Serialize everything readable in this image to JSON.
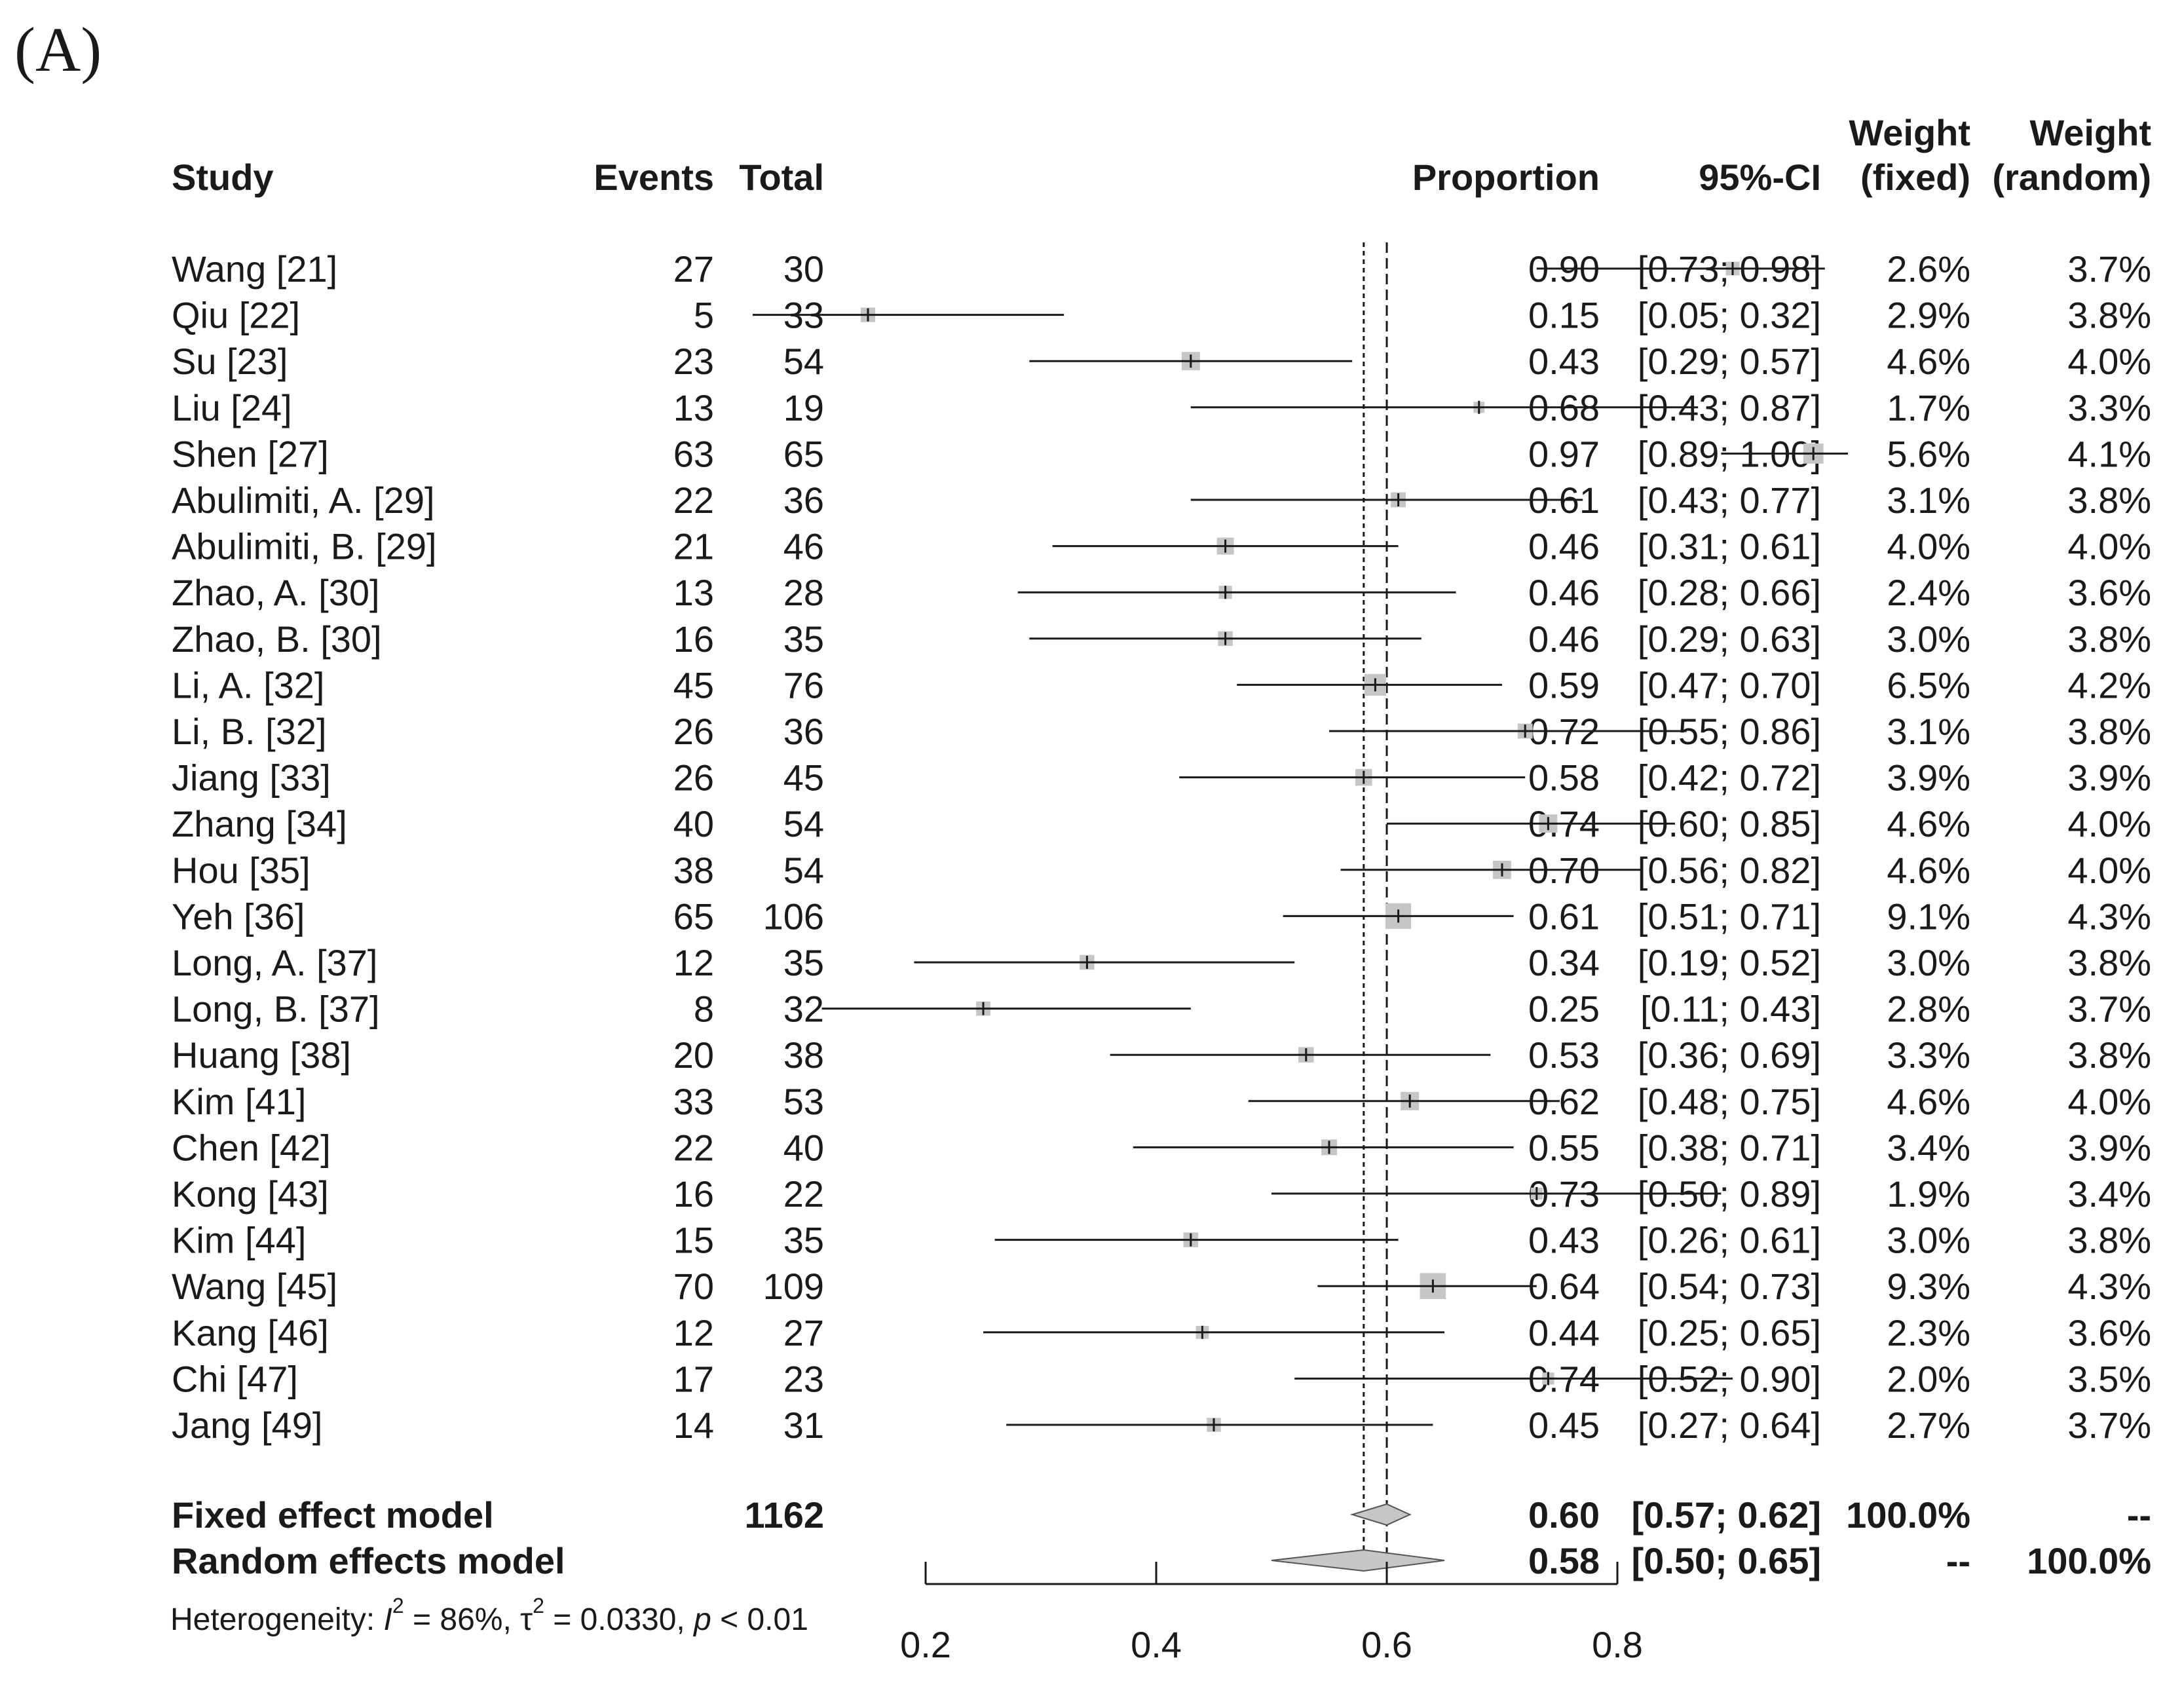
{
  "panel_label": "(A)",
  "headers": {
    "study": "Study",
    "events": "Events",
    "total": "Total",
    "proportion": "Proportion",
    "ci": "95%-CI",
    "weight_fixed_1": "Weight",
    "weight_fixed_2": "(fixed)",
    "weight_random_1": "Weight",
    "weight_random_2": "(random)"
  },
  "heterogeneity": {
    "prefix": "Heterogeneity: ",
    "i_symbol": "I",
    "sup": "2",
    "i_value": " = 86%, ",
    "tau_symbol": "τ",
    "tau_value": " = 0.0330, ",
    "p_symbol": "p",
    "p_value": " < 0.01"
  },
  "chart_data": {
    "type": "forest",
    "x_axis": {
      "ticks": [
        0.2,
        0.4,
        0.6,
        0.8
      ],
      "tick_labels": [
        "0.2",
        "0.4",
        "0.6",
        "0.8"
      ],
      "range": [
        0.2,
        0.8
      ]
    },
    "reference_lines": {
      "fixed": 0.6,
      "random": 0.58
    },
    "studies": [
      {
        "study": "Wang [21]",
        "events": "27",
        "total": "30",
        "proportion": 0.9,
        "ci_low": 0.73,
        "ci_high": 0.98,
        "weight_fixed": 2.6,
        "proportion_label": "0.90",
        "ci_label": "[0.73; 0.98]",
        "weight_fixed_label": "2.6%",
        "weight_random_label": "3.7%"
      },
      {
        "study": "Qiu [22]",
        "events": "5",
        "total": "33",
        "proportion": 0.15,
        "ci_low": 0.05,
        "ci_high": 0.32,
        "weight_fixed": 2.9,
        "proportion_label": "0.15",
        "ci_label": "[0.05; 0.32]",
        "weight_fixed_label": "2.9%",
        "weight_random_label": "3.8%"
      },
      {
        "study": "Su [23]",
        "events": "23",
        "total": "54",
        "proportion": 0.43,
        "ci_low": 0.29,
        "ci_high": 0.57,
        "weight_fixed": 4.6,
        "proportion_label": "0.43",
        "ci_label": "[0.29; 0.57]",
        "weight_fixed_label": "4.6%",
        "weight_random_label": "4.0%"
      },
      {
        "study": "Liu [24]",
        "events": "13",
        "total": "19",
        "proportion": 0.68,
        "ci_low": 0.43,
        "ci_high": 0.87,
        "weight_fixed": 1.7,
        "proportion_label": "0.68",
        "ci_label": "[0.43; 0.87]",
        "weight_fixed_label": "1.7%",
        "weight_random_label": "3.3%"
      },
      {
        "study": "Shen [27]",
        "events": "63",
        "total": "65",
        "proportion": 0.97,
        "ci_low": 0.89,
        "ci_high": 1.0,
        "weight_fixed": 5.6,
        "proportion_label": "0.97",
        "ci_label": "[0.89; 1.00]",
        "weight_fixed_label": "5.6%",
        "weight_random_label": "4.1%"
      },
      {
        "study": "Abulimiti, A. [29]",
        "events": "22",
        "total": "36",
        "proportion": 0.61,
        "ci_low": 0.43,
        "ci_high": 0.77,
        "weight_fixed": 3.1,
        "proportion_label": "0.61",
        "ci_label": "[0.43; 0.77]",
        "weight_fixed_label": "3.1%",
        "weight_random_label": "3.8%"
      },
      {
        "study": "Abulimiti, B. [29]",
        "events": "21",
        "total": "46",
        "proportion": 0.46,
        "ci_low": 0.31,
        "ci_high": 0.61,
        "weight_fixed": 4.0,
        "proportion_label": "0.46",
        "ci_label": "[0.31; 0.61]",
        "weight_fixed_label": "4.0%",
        "weight_random_label": "4.0%"
      },
      {
        "study": "Zhao, A. [30]",
        "events": "13",
        "total": "28",
        "proportion": 0.46,
        "ci_low": 0.28,
        "ci_high": 0.66,
        "weight_fixed": 2.4,
        "proportion_label": "0.46",
        "ci_label": "[0.28; 0.66]",
        "weight_fixed_label": "2.4%",
        "weight_random_label": "3.6%"
      },
      {
        "study": "Zhao, B. [30]",
        "events": "16",
        "total": "35",
        "proportion": 0.46,
        "ci_low": 0.29,
        "ci_high": 0.63,
        "weight_fixed": 3.0,
        "proportion_label": "0.46",
        "ci_label": "[0.29; 0.63]",
        "weight_fixed_label": "3.0%",
        "weight_random_label": "3.8%"
      },
      {
        "study": "Li, A. [32]",
        "events": "45",
        "total": "76",
        "proportion": 0.59,
        "ci_low": 0.47,
        "ci_high": 0.7,
        "weight_fixed": 6.5,
        "proportion_label": "0.59",
        "ci_label": "[0.47; 0.70]",
        "weight_fixed_label": "6.5%",
        "weight_random_label": "4.2%"
      },
      {
        "study": "Li, B. [32]",
        "events": "26",
        "total": "36",
        "proportion": 0.72,
        "ci_low": 0.55,
        "ci_high": 0.86,
        "weight_fixed": 3.1,
        "proportion_label": "0.72",
        "ci_label": "[0.55; 0.86]",
        "weight_fixed_label": "3.1%",
        "weight_random_label": "3.8%"
      },
      {
        "study": "Jiang [33]",
        "events": "26",
        "total": "45",
        "proportion": 0.58,
        "ci_low": 0.42,
        "ci_high": 0.72,
        "weight_fixed": 3.9,
        "proportion_label": "0.58",
        "ci_label": "[0.42; 0.72]",
        "weight_fixed_label": "3.9%",
        "weight_random_label": "3.9%"
      },
      {
        "study": "Zhang [34]",
        "events": "40",
        "total": "54",
        "proportion": 0.74,
        "ci_low": 0.6,
        "ci_high": 0.85,
        "weight_fixed": 4.6,
        "proportion_label": "0.74",
        "ci_label": "[0.60; 0.85]",
        "weight_fixed_label": "4.6%",
        "weight_random_label": "4.0%"
      },
      {
        "study": "Hou [35]",
        "events": "38",
        "total": "54",
        "proportion": 0.7,
        "ci_low": 0.56,
        "ci_high": 0.82,
        "weight_fixed": 4.6,
        "proportion_label": "0.70",
        "ci_label": "[0.56; 0.82]",
        "weight_fixed_label": "4.6%",
        "weight_random_label": "4.0%"
      },
      {
        "study": "Yeh [36]",
        "events": "65",
        "total": "106",
        "proportion": 0.61,
        "ci_low": 0.51,
        "ci_high": 0.71,
        "weight_fixed": 9.1,
        "proportion_label": "0.61",
        "ci_label": "[0.51; 0.71]",
        "weight_fixed_label": "9.1%",
        "weight_random_label": "4.3%"
      },
      {
        "study": "Long, A. [37]",
        "events": "12",
        "total": "35",
        "proportion": 0.34,
        "ci_low": 0.19,
        "ci_high": 0.52,
        "weight_fixed": 3.0,
        "proportion_label": "0.34",
        "ci_label": "[0.19; 0.52]",
        "weight_fixed_label": "3.0%",
        "weight_random_label": "3.8%"
      },
      {
        "study": "Long, B. [37]",
        "events": "8",
        "total": "32",
        "proportion": 0.25,
        "ci_low": 0.11,
        "ci_high": 0.43,
        "weight_fixed": 2.8,
        "proportion_label": "0.25",
        "ci_label": "[0.11; 0.43]",
        "weight_fixed_label": "2.8%",
        "weight_random_label": "3.7%"
      },
      {
        "study": "Huang [38]",
        "events": "20",
        "total": "38",
        "proportion": 0.53,
        "ci_low": 0.36,
        "ci_high": 0.69,
        "weight_fixed": 3.3,
        "proportion_label": "0.53",
        "ci_label": "[0.36; 0.69]",
        "weight_fixed_label": "3.3%",
        "weight_random_label": "3.8%"
      },
      {
        "study": "Kim [41]",
        "events": "33",
        "total": "53",
        "proportion": 0.62,
        "ci_low": 0.48,
        "ci_high": 0.75,
        "weight_fixed": 4.6,
        "proportion_label": "0.62",
        "ci_label": "[0.48; 0.75]",
        "weight_fixed_label": "4.6%",
        "weight_random_label": "4.0%"
      },
      {
        "study": "Chen [42]",
        "events": "22",
        "total": "40",
        "proportion": 0.55,
        "ci_low": 0.38,
        "ci_high": 0.71,
        "weight_fixed": 3.4,
        "proportion_label": "0.55",
        "ci_label": "[0.38; 0.71]",
        "weight_fixed_label": "3.4%",
        "weight_random_label": "3.9%"
      },
      {
        "study": "Kong [43]",
        "events": "16",
        "total": "22",
        "proportion": 0.73,
        "ci_low": 0.5,
        "ci_high": 0.89,
        "weight_fixed": 1.9,
        "proportion_label": "0.73",
        "ci_label": "[0.50; 0.89]",
        "weight_fixed_label": "1.9%",
        "weight_random_label": "3.4%"
      },
      {
        "study": "Kim [44]",
        "events": "15",
        "total": "35",
        "proportion": 0.43,
        "ci_low": 0.26,
        "ci_high": 0.61,
        "weight_fixed": 3.0,
        "proportion_label": "0.43",
        "ci_label": "[0.26; 0.61]",
        "weight_fixed_label": "3.0%",
        "weight_random_label": "3.8%"
      },
      {
        "study": "Wang [45]",
        "events": "70",
        "total": "109",
        "proportion": 0.64,
        "ci_low": 0.54,
        "ci_high": 0.73,
        "weight_fixed": 9.3,
        "proportion_label": "0.64",
        "ci_label": "[0.54; 0.73]",
        "weight_fixed_label": "9.3%",
        "weight_random_label": "4.3%"
      },
      {
        "study": "Kang [46]",
        "events": "12",
        "total": "27",
        "proportion": 0.44,
        "ci_low": 0.25,
        "ci_high": 0.65,
        "weight_fixed": 2.3,
        "proportion_label": "0.44",
        "ci_label": "[0.25; 0.65]",
        "weight_fixed_label": "2.3%",
        "weight_random_label": "3.6%"
      },
      {
        "study": "Chi [47]",
        "events": "17",
        "total": "23",
        "proportion": 0.74,
        "ci_low": 0.52,
        "ci_high": 0.9,
        "weight_fixed": 2.0,
        "proportion_label": "0.74",
        "ci_label": "[0.52; 0.90]",
        "weight_fixed_label": "2.0%",
        "weight_random_label": "3.5%"
      },
      {
        "study": "Jang [49]",
        "events": "14",
        "total": "31",
        "proportion": 0.45,
        "ci_low": 0.27,
        "ci_high": 0.64,
        "weight_fixed": 2.7,
        "proportion_label": "0.45",
        "ci_label": "[0.27; 0.64]",
        "weight_fixed_label": "2.7%",
        "weight_random_label": "3.7%"
      }
    ],
    "summary": [
      {
        "label": "Fixed effect model",
        "total": "1162",
        "proportion": 0.6,
        "ci_low": 0.57,
        "ci_high": 0.62,
        "proportion_label": "0.60",
        "ci_label": "[0.57; 0.62]",
        "weight_fixed_label": "100.0%",
        "weight_random_label": "--"
      },
      {
        "label": "Random effects model",
        "total": "",
        "proportion": 0.58,
        "ci_low": 0.5,
        "ci_high": 0.65,
        "proportion_label": "0.58",
        "ci_label": "[0.50; 0.65]",
        "weight_fixed_label": "--",
        "weight_random_label": "100.0%"
      }
    ],
    "colors": {
      "square": "#c6c6c6",
      "diamond": "#c6c6c6",
      "line": "#1a1a1a"
    }
  }
}
